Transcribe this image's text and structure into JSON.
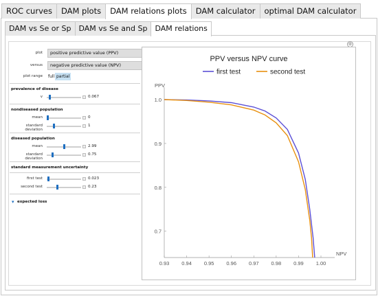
{
  "main_tabs": [
    {
      "label": "ROC curves"
    },
    {
      "label": "DAM plots"
    },
    {
      "label": "DAM relations plots"
    },
    {
      "label": "DAM calculator"
    },
    {
      "label": "optimal DAM calculator"
    }
  ],
  "sub_tabs": [
    {
      "label": "DAM vs Se or Sp"
    },
    {
      "label": "DAM vs Se and Sp"
    },
    {
      "label": "DAM relations"
    }
  ],
  "controls": {
    "plot_label": "plot",
    "plot_value": "positive predictive value (PPV)",
    "versus_label": "versus",
    "versus_value": "negative predictive value (NPV)",
    "plot_range_label": "plot range",
    "range_full": "full",
    "range_partial": "partial",
    "prevalence_title": "prevalence of disease",
    "prevalence_label": "v",
    "prevalence_value": "0.067",
    "prevalence_fraction": 0.067,
    "nondiseased_title": "nondiseased population",
    "mean_label": "mean",
    "nondiseased_mean": "0",
    "nondiseased_mean_fraction": 0.0,
    "sd_label": "standard deviation",
    "nondiseased_sd": "1",
    "nondiseased_sd_fraction": 0.2,
    "diseased_title": "diseased population",
    "diseased_mean": "2.99",
    "diseased_mean_fraction": 0.5,
    "diseased_sd": "0.75",
    "diseased_sd_fraction": 0.15,
    "uncertainty_title": "standard measurement uncertainty",
    "first_test_label": "first test",
    "first_test_value": "0.023",
    "first_test_fraction": 0.03,
    "second_test_label": "second test",
    "second_test_value": "0.23",
    "second_test_fraction": 0.3,
    "expected_loss_label": "expected loss",
    "gear_glyph": "⚙",
    "dropdown_arrow": "▾",
    "expand_arrow": "▾"
  },
  "colors": {
    "first_test": "#5b4fd6",
    "second_test": "#e8900f",
    "slider_thumb": "#1e6fc1",
    "active_toggle": "#c7e1f3"
  },
  "chart_data": {
    "type": "line",
    "title": "PPV versus NPV curve",
    "xlabel": "NPV",
    "ylabel": "PPV",
    "xlim": [
      0.93,
      1.0
    ],
    "ylim": [
      0.64,
      1.0
    ],
    "xticks": [
      0.93,
      0.94,
      0.95,
      0.96,
      0.97,
      0.98,
      0.99,
      1.0
    ],
    "xtick_labels": [
      "0.93",
      "0.94",
      "0.95",
      "0.96",
      "0.97",
      "0.98",
      "0.99",
      "1.00"
    ],
    "yticks": [
      0.7,
      0.8,
      0.9,
      1.0
    ],
    "ytick_labels": [
      "0.7",
      "0.8",
      "0.9",
      "1.0"
    ],
    "legend_position": "top",
    "series": [
      {
        "name": "first test",
        "color": "#5b4fd6",
        "points": [
          [
            0.93,
            1.0
          ],
          [
            0.94,
            0.999
          ],
          [
            0.95,
            0.997
          ],
          [
            0.96,
            0.993
          ],
          [
            0.97,
            0.983
          ],
          [
            0.975,
            0.974
          ],
          [
            0.98,
            0.958
          ],
          [
            0.985,
            0.932
          ],
          [
            0.99,
            0.878
          ],
          [
            0.993,
            0.818
          ],
          [
            0.995,
            0.75
          ],
          [
            0.9965,
            0.685
          ],
          [
            0.9972,
            0.64
          ]
        ]
      },
      {
        "name": "second test",
        "color": "#e8900f",
        "points": [
          [
            0.93,
            1.0
          ],
          [
            0.94,
            0.998
          ],
          [
            0.95,
            0.994
          ],
          [
            0.96,
            0.988
          ],
          [
            0.97,
            0.976
          ],
          [
            0.975,
            0.965
          ],
          [
            0.98,
            0.947
          ],
          [
            0.985,
            0.918
          ],
          [
            0.99,
            0.858
          ],
          [
            0.993,
            0.795
          ],
          [
            0.995,
            0.725
          ],
          [
            0.9958,
            0.685
          ],
          [
            0.9963,
            0.64
          ]
        ]
      }
    ]
  }
}
